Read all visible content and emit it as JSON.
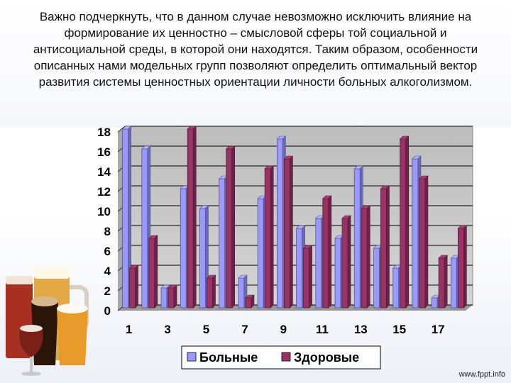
{
  "slide": {
    "paragraph": "Важно подчеркнуть, что в данном случае невозможно исключить влияние на формирование их ценностно – смысловой сферы той социальной и антисоциальной среды, в которой они находятся. Таким образом, особенности описанных нами модельных групп позволяют определить оптимальный вектор развития системы ценностных ориентации личности больных алкоголизмом.",
    "watermark": "www.fppt.info"
  },
  "chart_data": {
    "type": "bar",
    "x": [
      1,
      2,
      3,
      4,
      5,
      6,
      7,
      8,
      9,
      10,
      11,
      12,
      13,
      14,
      15,
      16,
      17,
      18
    ],
    "x_tick_labels": [
      "1",
      "3",
      "5",
      "7",
      "9",
      "11",
      "13",
      "15",
      "17"
    ],
    "y_tick_labels": [
      "0",
      "2",
      "4",
      "6",
      "8",
      "10",
      "12",
      "14",
      "16",
      "18"
    ],
    "ylim": [
      0,
      18
    ],
    "grid": true,
    "legend_position": "bottom",
    "series": [
      {
        "name": "Больные",
        "color": "#9999ff",
        "values": [
          18,
          16,
          2,
          12,
          10,
          13,
          3,
          11,
          17,
          8,
          9,
          7,
          14,
          6,
          4,
          15,
          1,
          5
        ]
      },
      {
        "name": "Здоровые",
        "color": "#993366",
        "values": [
          4,
          7,
          2,
          18,
          3,
          16,
          1,
          14,
          15,
          6,
          11,
          9,
          10,
          12,
          17,
          13,
          5,
          8
        ]
      }
    ]
  }
}
